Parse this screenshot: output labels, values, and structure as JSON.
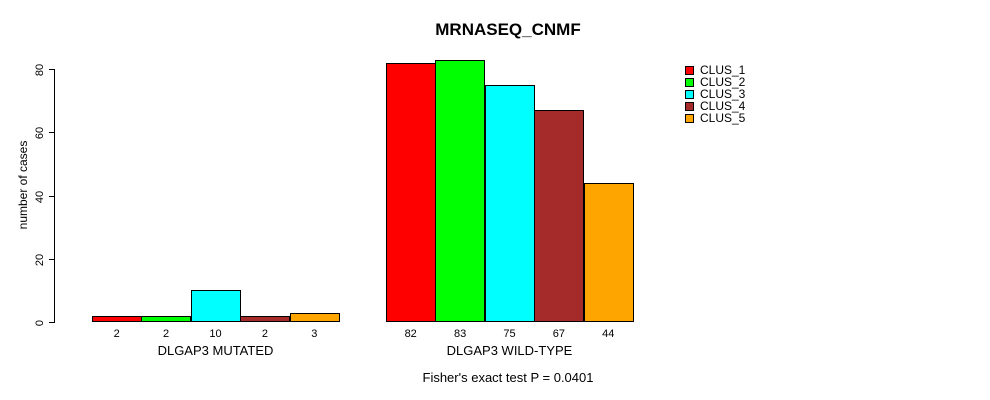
{
  "chart_data": {
    "type": "bar",
    "title": "MRNASEQ_CNMF",
    "ylabel": "number of cases",
    "xlabel": "",
    "ylim": [
      0,
      80
    ],
    "yticks": [
      0,
      20,
      40,
      60,
      80
    ],
    "grid": false,
    "legend_position": "right",
    "bar_borders": "#000000",
    "series": [
      {
        "name": "CLUS_1",
        "color": "#ff0000"
      },
      {
        "name": "CLUS_2",
        "color": "#00ff00"
      },
      {
        "name": "CLUS_3",
        "color": "#00ffff"
      },
      {
        "name": "CLUS_4",
        "color": "#a52a2a"
      },
      {
        "name": "CLUS_5",
        "color": "#ffa500"
      }
    ],
    "groups": [
      {
        "label": "DLGAP3 MUTATED",
        "values": [
          2,
          2,
          10,
          2,
          3
        ]
      },
      {
        "label": "DLGAP3 WILD-TYPE",
        "values": [
          82,
          83,
          75,
          67,
          44
        ]
      }
    ],
    "annotation": "Fisher's exact test P = 0.0401"
  }
}
